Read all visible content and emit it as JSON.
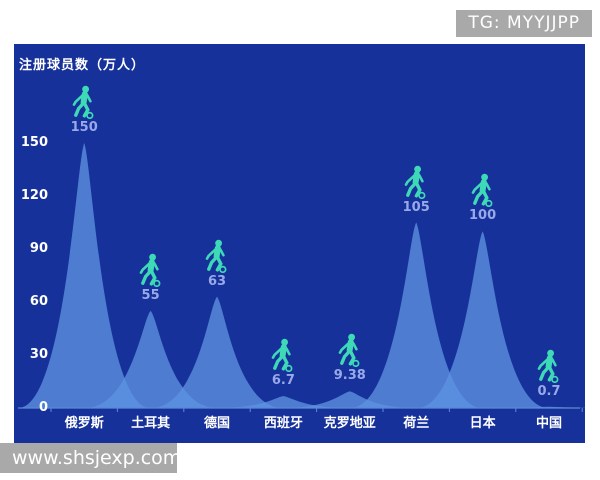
{
  "overlay": {
    "tg_badge": "TG: MYYJJPP",
    "watermark": "www.shsjexp.com"
  },
  "chart_data": {
    "type": "area",
    "subtype": "pictorial-spike-with-player-icons",
    "title": "注册球员数（万人）",
    "xlabel": "",
    "ylabel": "注册球员数（万人）",
    "categories": [
      "俄罗斯",
      "土耳其",
      "德国",
      "西班牙",
      "克罗地亚",
      "荷兰",
      "日本",
      "中国"
    ],
    "values": [
      150,
      55,
      63,
      6.7,
      9.38,
      105,
      100,
      0.7
    ],
    "value_labels": [
      "150",
      "55",
      "63",
      "6.7",
      "9.38",
      "105",
      "100",
      "0.7"
    ],
    "yticks": [
      150,
      120,
      90,
      60,
      30,
      0
    ],
    "ylim": [
      0,
      160
    ],
    "grid": false,
    "legend": null,
    "icon": "soccer-player-with-ball",
    "colors": {
      "chart_background": "#17319b",
      "spike_fill": "rgba(92,146,224,0.78)",
      "axis_line": "#5d89d8",
      "tick_text": "#ffffff",
      "value_label_text": "#98a9ea",
      "category_text": "#ffffff",
      "player_icon": "#3ed9b7",
      "badge_background": "#a9a9a9",
      "badge_text": "#ffffff",
      "page_background": "#ffffff"
    }
  }
}
